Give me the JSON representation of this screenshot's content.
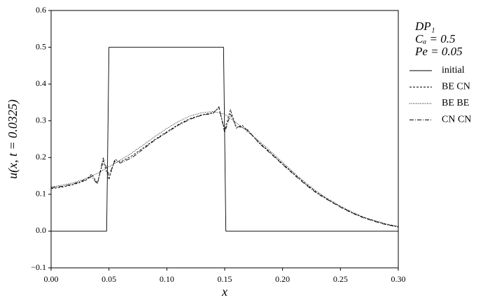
{
  "chart_data": {
    "type": "line",
    "xlabel": "x",
    "ylabel": "u(x, t = 0.0325)",
    "annotations": [
      "DP₁",
      "Cₐ = 0.5",
      "Pe = 0.05"
    ],
    "xlim": [
      0,
      0.3
    ],
    "ylim": [
      -0.1,
      0.6
    ],
    "xticks": [
      {
        "value": 0,
        "label": "0.00"
      },
      {
        "value": 0.05,
        "label": "0.05"
      },
      {
        "value": 0.1,
        "label": "0.10"
      },
      {
        "value": 0.15,
        "label": "0.15"
      },
      {
        "value": 0.2,
        "label": "0.20"
      },
      {
        "value": 0.25,
        "label": "0.25"
      },
      {
        "value": 0.3,
        "label": "0.30"
      }
    ],
    "yticks": [
      {
        "value": -0.1,
        "label": "−0.1"
      },
      {
        "value": 0,
        "label": "0.0"
      },
      0.1,
      0.2,
      0.3,
      0.4,
      0.5,
      0.6
    ],
    "series": [
      {
        "name": "initial",
        "color": "#000000",
        "linestyle": "solid",
        "x": [
          0,
          0.048,
          0.05,
          0.149,
          0.151,
          0.3
        ],
        "values": [
          0,
          0,
          0.5,
          0.5,
          0,
          0
        ]
      },
      {
        "name": "BE CN",
        "color": "#000000",
        "linestyle": "dashed",
        "x": [
          0,
          0.01,
          0.02,
          0.03,
          0.035,
          0.04,
          0.045,
          0.05,
          0.055,
          0.06,
          0.07,
          0.08,
          0.09,
          0.1,
          0.11,
          0.12,
          0.13,
          0.14,
          0.145,
          0.15,
          0.155,
          0.16,
          0.165,
          0.17,
          0.18,
          0.19,
          0.2,
          0.21,
          0.22,
          0.23,
          0.24,
          0.25,
          0.26,
          0.27,
          0.28,
          0.29,
          0.3
        ],
        "values": [
          0.115,
          0.12,
          0.127,
          0.138,
          0.155,
          0.13,
          0.19,
          0.14,
          0.195,
          0.188,
          0.205,
          0.227,
          0.25,
          0.27,
          0.29,
          0.306,
          0.316,
          0.322,
          0.335,
          0.275,
          0.33,
          0.28,
          0.288,
          0.272,
          0.24,
          0.212,
          0.183,
          0.155,
          0.128,
          0.104,
          0.084,
          0.066,
          0.05,
          0.037,
          0.027,
          0.018,
          0.012
        ]
      },
      {
        "name": "BE BE",
        "color": "#000000",
        "linestyle": "dotted",
        "x": [
          0,
          0.01,
          0.02,
          0.03,
          0.04,
          0.05,
          0.06,
          0.07,
          0.08,
          0.09,
          0.1,
          0.11,
          0.12,
          0.13,
          0.14,
          0.15,
          0.16,
          0.17,
          0.18,
          0.19,
          0.2,
          0.21,
          0.22,
          0.23,
          0.24,
          0.25,
          0.26,
          0.27,
          0.28,
          0.29,
          0.3
        ],
        "values": [
          0.12,
          0.125,
          0.132,
          0.143,
          0.157,
          0.175,
          0.193,
          0.213,
          0.235,
          0.258,
          0.279,
          0.298,
          0.313,
          0.322,
          0.325,
          0.318,
          0.295,
          0.27,
          0.244,
          0.216,
          0.187,
          0.158,
          0.131,
          0.107,
          0.086,
          0.068,
          0.052,
          0.038,
          0.028,
          0.019,
          0.013
        ]
      },
      {
        "name": "CN CN",
        "color": "#000000",
        "linestyle": "dashdot",
        "x": [
          0,
          0.01,
          0.02,
          0.03,
          0.035,
          0.04,
          0.045,
          0.05,
          0.055,
          0.06,
          0.07,
          0.08,
          0.09,
          0.1,
          0.11,
          0.12,
          0.13,
          0.14,
          0.145,
          0.15,
          0.155,
          0.16,
          0.165,
          0.17,
          0.18,
          0.19,
          0.2,
          0.21,
          0.22,
          0.23,
          0.24,
          0.25,
          0.26,
          0.27,
          0.28,
          0.29,
          0.3
        ],
        "values": [
          0.118,
          0.122,
          0.129,
          0.14,
          0.148,
          0.128,
          0.198,
          0.152,
          0.19,
          0.185,
          0.2,
          0.224,
          0.248,
          0.268,
          0.288,
          0.304,
          0.315,
          0.32,
          0.338,
          0.268,
          0.318,
          0.285,
          0.282,
          0.275,
          0.238,
          0.21,
          0.181,
          0.153,
          0.126,
          0.102,
          0.083,
          0.065,
          0.049,
          0.036,
          0.026,
          0.017,
          0.011
        ]
      }
    ]
  }
}
